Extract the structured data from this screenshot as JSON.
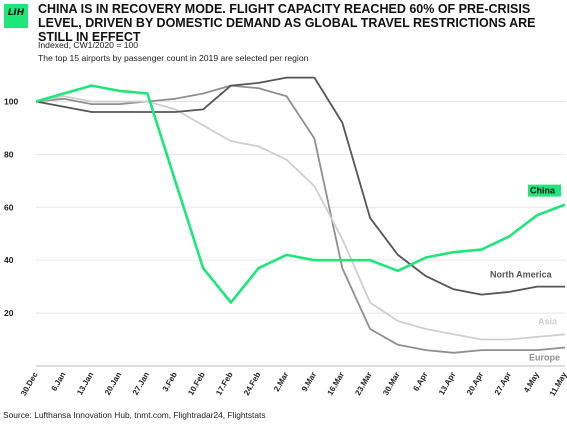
{
  "header": {
    "logo_text": "LIH",
    "title": "CHINA IS IN RECOVERY MODE. FLIGHT CAPACITY REACHED 60% OF PRE-CRISIS LEVEL, DRIVEN BY DOMESTIC DEMAND AS GLOBAL TRAVEL RESTRICTIONS ARE STILL IN EFFECT",
    "subtitle_1": "Indexed, CW1/2020 = 100",
    "subtitle_2": "The top 15 airports by passenger count in 2019 are selected per region"
  },
  "footer": {
    "source": "Source: Lufthansa Innovation Hub, tnmt.com, Flightradar24, Flightstats"
  },
  "colors": {
    "china": "#1ee67a",
    "north_america": "#555555",
    "asia": "#cfcfcf",
    "europe": "#8f8f8f",
    "grid": "#e6e6e6",
    "text": "#222222"
  },
  "chart_data": {
    "type": "line",
    "categories": [
      "30.Dec",
      "6.Jan",
      "13.Jan",
      "20.Jan",
      "27.Jan",
      "3.Feb",
      "10.Feb",
      "17.Feb",
      "24.Feb",
      "2.Mar",
      "9.Mar",
      "16.Mar",
      "23.Mar",
      "30.Mar",
      "6.Apr",
      "13.Apr",
      "20.Apr",
      "27.Apr",
      "4.May",
      "11.May"
    ],
    "ylim": [
      0,
      110
    ],
    "yticks": [
      20,
      40,
      60,
      80,
      100
    ],
    "grid": true,
    "series": [
      {
        "name": "China",
        "color_key": "china",
        "values": [
          100,
          103,
          106,
          104,
          103,
          70,
          37,
          24,
          37,
          42,
          40,
          40,
          40,
          36,
          41,
          43,
          44,
          49,
          57,
          61
        ]
      },
      {
        "name": "North America",
        "color_key": "north_america",
        "values": [
          100,
          98,
          96,
          96,
          96,
          96,
          97,
          106,
          107,
          109,
          109,
          92,
          56,
          42,
          34,
          29,
          27,
          28,
          30,
          30
        ]
      },
      {
        "name": "Asia",
        "color_key": "asia",
        "values": [
          100,
          102,
          100,
          100,
          100,
          97,
          91,
          85,
          83,
          78,
          68,
          48,
          24,
          17,
          14,
          12,
          10,
          10,
          11,
          12
        ]
      },
      {
        "name": "Europe",
        "color_key": "europe",
        "values": [
          100,
          101,
          99,
          99,
          100,
          101,
          103,
          106,
          105,
          102,
          86,
          37,
          14,
          8,
          6,
          5,
          6,
          6,
          6,
          7
        ]
      }
    ]
  }
}
